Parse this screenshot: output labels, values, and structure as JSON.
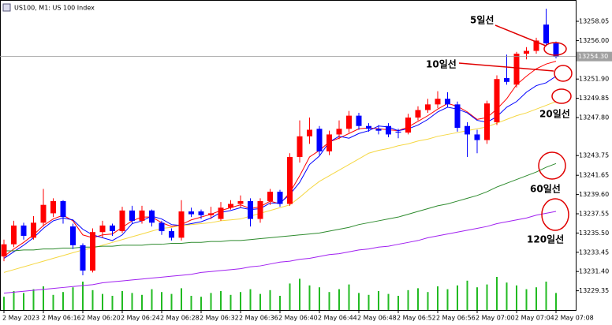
{
  "chart_data": {
    "type": "candlestick",
    "title": "US100, M1: US 100 Index",
    "categories": [
      "2 May 2023",
      null,
      null,
      null,
      "2 May 06:16",
      null,
      null,
      null,
      "2 May 06:20",
      null,
      null,
      null,
      "2 May 06:24",
      null,
      null,
      null,
      "2 May 06:28",
      null,
      null,
      null,
      "2 May 06:32",
      null,
      null,
      null,
      "2 May 06:36",
      null,
      null,
      null,
      "2 May 06:40",
      null,
      null,
      null,
      "2 May 06:44",
      null,
      null,
      null,
      "2 May 06:48",
      null,
      null,
      null,
      "2 May 06:52",
      null,
      null,
      null,
      "2 May 06:56",
      null,
      null,
      null,
      "2 May 07:00",
      null,
      null,
      null,
      "2 May 07:04",
      null,
      null,
      null,
      "2 May 07:08"
    ],
    "candles": {
      "up_color": "#ff0000",
      "down_color": "#0000ff",
      "open": [
        13233.0,
        13234.3,
        13236.3,
        13235.0,
        13236.6,
        13237.6,
        13238.9,
        13236.2,
        13234.2,
        13231.5,
        13235.6,
        13236.3,
        13235.7,
        13237.9,
        13236.8,
        13237.9,
        13236.6,
        13235.7,
        13235.0,
        13237.8,
        13237.8,
        13237.4,
        13237.0,
        13238.2,
        13238.6,
        13238.9,
        13237.0,
        13238.9,
        13239.9,
        13238.6,
        13243.6,
        13245.8,
        13246.6,
        13244.2,
        13246.0,
        13246.6,
        13248.0,
        13246.9,
        13246.6,
        13246.9,
        13246.3,
        13246.2,
        13247.8,
        13248.6,
        13249.2,
        13249.8,
        13249.2,
        13246.9,
        13246.0,
        13245.4,
        13247.3,
        13252.0,
        13251.3,
        13254.6,
        13254.9,
        13257.7,
        13255.7
      ],
      "high": [
        13234.8,
        13236.8,
        13236.6,
        13237.3,
        13240.2,
        13239.2,
        13239.0,
        13236.5,
        13234.4,
        13236.0,
        13236.8,
        13236.5,
        13238.3,
        13238.4,
        13238.4,
        13238.0,
        13236.8,
        13236.0,
        13239.0,
        13238.2,
        13238.0,
        13238.3,
        13238.8,
        13239.0,
        13239.5,
        13239.2,
        13239.2,
        13240.2,
        13240.1,
        13244.0,
        13247.5,
        13247.8,
        13246.9,
        13246.4,
        13247.5,
        13248.5,
        13248.3,
        13247.2,
        13247.0,
        13247.2,
        13246.6,
        13248.2,
        13249.0,
        13249.8,
        13250.6,
        13250.5,
        13249.5,
        13247.3,
        13246.5,
        13249.6,
        13252.3,
        13254.5,
        13254.8,
        13255.3,
        13256.3,
        13259.4,
        13255.9
      ],
      "low": [
        13232.5,
        13234.0,
        13234.8,
        13234.8,
        13236.2,
        13237.2,
        13236.5,
        13233.8,
        13231.0,
        13231.3,
        13235.0,
        13235.2,
        13235.5,
        13236.5,
        13236.5,
        13236.2,
        13235.3,
        13234.7,
        13234.7,
        13237.2,
        13237.0,
        13237.0,
        13236.8,
        13238.0,
        13238.2,
        13236.2,
        13236.6,
        13238.5,
        13238.3,
        13238.4,
        13243.0,
        13245.0,
        13243.8,
        13243.8,
        13245.5,
        13246.2,
        13246.5,
        13246.3,
        13246.0,
        13245.7,
        13245.6,
        13246.0,
        13247.5,
        13248.3,
        13248.8,
        13248.9,
        13246.3,
        13243.6,
        13244.0,
        13245.0,
        13247.0,
        13251.3,
        13251.0,
        13254.0,
        13254.6,
        13255.4,
        13254.1
      ],
      "close": [
        13234.3,
        13236.3,
        13235.2,
        13236.6,
        13238.5,
        13238.9,
        13237.2,
        13234.2,
        13231.5,
        13235.6,
        13236.3,
        13235.7,
        13237.9,
        13236.8,
        13237.9,
        13236.6,
        13235.7,
        13235.0,
        13237.8,
        13237.5,
        13237.4,
        13237.6,
        13238.2,
        13238.6,
        13238.9,
        13237.0,
        13238.9,
        13239.9,
        13238.6,
        13243.6,
        13245.8,
        13246.5,
        13244.2,
        13246.0,
        13246.6,
        13248.0,
        13246.9,
        13246.6,
        13246.4,
        13246.0,
        13246.2,
        13247.8,
        13248.6,
        13249.2,
        13249.8,
        13249.2,
        13246.7,
        13246.0,
        13245.4,
        13249.3,
        13251.9,
        13251.6,
        13254.6,
        13254.9,
        13256.0,
        13255.7,
        13254.3
      ]
    },
    "series": [
      {
        "name": "5일선",
        "color": "#ff0000",
        "values": [
          13233.0,
          13233.8,
          13234.5,
          13235.3,
          13236.3,
          13237.0,
          13237.4,
          13236.8,
          13235.3,
          13235.0,
          13235.3,
          13235.4,
          13236.1,
          13236.8,
          13237.2,
          13237.2,
          13236.6,
          13236.2,
          13236.4,
          13236.9,
          13237.2,
          13237.5,
          13237.9,
          13238.2,
          13238.5,
          13238.1,
          13238.3,
          13238.9,
          13238.6,
          13239.8,
          13241.6,
          13243.6,
          13244.3,
          13245.2,
          13245.6,
          13246.1,
          13246.6,
          13246.7,
          13246.6,
          13246.5,
          13246.4,
          13246.8,
          13247.4,
          13248.0,
          13248.7,
          13249.3,
          13249.0,
          13248.4,
          13247.6,
          13247.8,
          13248.7,
          13249.8,
          13251.3,
          13252.2,
          13253.0,
          13253.5,
          13253.8
        ]
      },
      {
        "name": "10일선",
        "color": "#0000ff",
        "values": [
          13232.8,
          13233.5,
          13234.2,
          13235.0,
          13236.0,
          13236.8,
          13237.1,
          13236.9,
          13235.9,
          13235.3,
          13235.0,
          13234.7,
          13235.3,
          13236.5,
          13236.8,
          13237.3,
          13237.0,
          13236.4,
          13236.3,
          13236.5,
          13236.7,
          13237.1,
          13237.7,
          13237.9,
          13238.2,
          13238.0,
          13238.1,
          13238.7,
          13238.7,
          13239.6,
          13240.9,
          13242.8,
          13243.7,
          13245.2,
          13245.8,
          13245.6,
          13246.1,
          13246.4,
          13246.9,
          13246.8,
          13246.4,
          13246.6,
          13247.0,
          13247.6,
          13248.4,
          13248.9,
          13248.7,
          13248.3,
          13247.5,
          13247.3,
          13247.9,
          13248.9,
          13249.5,
          13250.5,
          13251.2,
          13251.5,
          13252.2
        ]
      },
      {
        "name": "20일선",
        "color": "#f5d742",
        "values": [
          13231.3,
          13231.6,
          13231.9,
          13232.2,
          13232.5,
          13232.8,
          13233.1,
          13233.4,
          13233.7,
          13233.9,
          13234.2,
          13234.5,
          13234.8,
          13235.1,
          13235.4,
          13235.7,
          13236.0,
          13236.1,
          13236.3,
          13236.4,
          13236.5,
          13236.6,
          13236.8,
          13236.9,
          13237.0,
          13237.3,
          13237.6,
          13237.9,
          13238.2,
          13238.5,
          13239.3,
          13240.2,
          13241.0,
          13241.6,
          13242.2,
          13242.8,
          13243.4,
          13244.0,
          13244.3,
          13244.5,
          13244.8,
          13245.0,
          13245.3,
          13245.5,
          13245.8,
          13246.0,
          13246.2,
          13246.4,
          13246.6,
          13246.8,
          13247.2,
          13247.6,
          13248.0,
          13248.3,
          13248.7,
          13249.1,
          13249.5
        ]
      },
      {
        "name": "60일선",
        "color": "#2e8b2e",
        "values": [
          13233.6,
          13233.6,
          13233.7,
          13233.7,
          13233.8,
          13233.8,
          13233.9,
          13233.9,
          13234.0,
          13234.0,
          13234.1,
          13234.1,
          13234.2,
          13234.2,
          13234.2,
          13234.3,
          13234.3,
          13234.4,
          13234.4,
          13234.5,
          13234.5,
          13234.6,
          13234.6,
          13234.7,
          13234.7,
          13234.8,
          13234.9,
          13235.0,
          13235.1,
          13235.2,
          13235.3,
          13235.4,
          13235.5,
          13235.7,
          13235.9,
          13236.1,
          13236.4,
          13236.6,
          13236.8,
          13237.0,
          13237.2,
          13237.5,
          13237.8,
          13238.1,
          13238.4,
          13238.6,
          13238.9,
          13239.2,
          13239.5,
          13239.9,
          13240.4,
          13240.8,
          13241.2,
          13241.6,
          13242.0,
          13242.5,
          13242.9
        ]
      },
      {
        "name": "120일선",
        "color": "#a020f0",
        "values": [
          13229.1,
          13229.2,
          13229.3,
          13229.4,
          13229.5,
          13229.6,
          13229.7,
          13229.8,
          13229.9,
          13230.0,
          13230.2,
          13230.3,
          13230.4,
          13230.5,
          13230.6,
          13230.7,
          13230.8,
          13230.9,
          13231.0,
          13231.1,
          13231.3,
          13231.4,
          13231.5,
          13231.6,
          13231.7,
          13231.9,
          13232.0,
          13232.2,
          13232.4,
          13232.5,
          13232.7,
          13232.8,
          13233.0,
          13233.2,
          13233.3,
          13233.5,
          13233.7,
          13233.8,
          13234.0,
          13234.1,
          13234.3,
          13234.5,
          13234.7,
          13235.0,
          13235.2,
          13235.4,
          13235.6,
          13235.8,
          13236.0,
          13236.2,
          13236.5,
          13236.7,
          13236.9,
          13237.1,
          13237.4,
          13237.6,
          13237.8
        ]
      }
    ],
    "volume": {
      "color": "#22bb22",
      "lim": [
        0,
        100
      ],
      "values": [
        14,
        20,
        18,
        22,
        25,
        16,
        19,
        24,
        30,
        21,
        17,
        15,
        20,
        18,
        16,
        22,
        19,
        17,
        23,
        15,
        14,
        18,
        20,
        16,
        19,
        22,
        17,
        21,
        15,
        28,
        33,
        26,
        24,
        19,
        22,
        27,
        18,
        16,
        20,
        17,
        15,
        21,
        23,
        19,
        25,
        22,
        26,
        31,
        24,
        27,
        35,
        29,
        26,
        22,
        24,
        30,
        18
      ]
    },
    "current_price": {
      "value": 13254.3,
      "label": "13254.30"
    },
    "ylim": [
      13227.3,
      13259.9
    ],
    "yticks": [
      {
        "value": 13258.05,
        "label": "13258.05"
      },
      {
        "value": 13256.0,
        "label": "13256.00"
      },
      {
        "value": 13251.9,
        "label": "13251.90"
      },
      {
        "value": 13249.85,
        "label": "13249.85"
      },
      {
        "value": 13247.8,
        "label": "13247.80"
      },
      {
        "value": 13243.75,
        "label": "13243.75"
      },
      {
        "value": 13241.65,
        "label": "13241.65"
      },
      {
        "value": 13239.6,
        "label": "13239.60"
      },
      {
        "value": 13237.55,
        "label": "13237.55"
      },
      {
        "value": 13235.5,
        "label": "13235.50"
      },
      {
        "value": 13233.45,
        "label": "13233.45"
      },
      {
        "value": 13231.4,
        "label": "13231.40"
      },
      {
        "value": 13229.35,
        "label": "13229.35"
      }
    ]
  }
}
